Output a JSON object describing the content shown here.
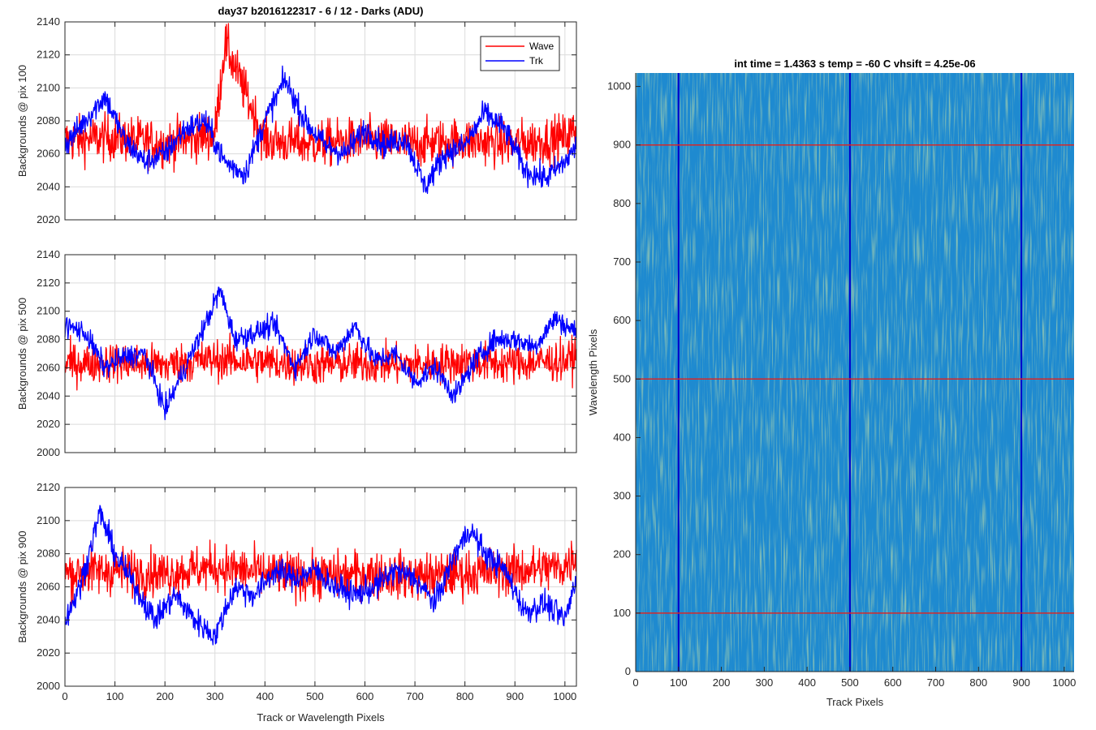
{
  "figure": {
    "title": "day37 b2016122317 - 6 / 12 - Darks (ADU)",
    "image_title": "int time = 1.4363 s    temp = -60 C    vhsift = 4.25e-06"
  },
  "legend": {
    "wave_label": "Wave",
    "trk_label": "Trk"
  },
  "colors": {
    "wave": "#ff0000",
    "trk": "#0000ff",
    "marker_h": "#d62728",
    "marker_v": "#0000cc",
    "heatmap_base": "#1e8ad0",
    "heatmap_hi": "#8fc060"
  },
  "chart_data": [
    {
      "type": "line",
      "ylabel": "Backgrounds @ pix 100",
      "xlim": [
        0,
        1023
      ],
      "ylim": [
        2020,
        2140
      ],
      "yticks": [
        2020,
        2040,
        2060,
        2080,
        2100,
        2120,
        2140
      ],
      "xticks": [
        0,
        100,
        200,
        300,
        400,
        500,
        600,
        700,
        800,
        900,
        1000
      ],
      "grid": true,
      "legend_position": "top-right",
      "series": [
        {
          "name": "Wave",
          "color": "#ff0000",
          "style": "noise",
          "mean": 2068,
          "amp": 18,
          "x": [
            0,
            100,
            200,
            300,
            320,
            400,
            500,
            600,
            700,
            800,
            900,
            1000,
            1023
          ],
          "y": [
            2068,
            2070,
            2066,
            2072,
            2127,
            2068,
            2066,
            2068,
            2066,
            2068,
            2066,
            2070,
            2075
          ]
        },
        {
          "name": "Trk",
          "color": "#0000ff",
          "style": "smooth",
          "x": [
            0,
            40,
            80,
            120,
            160,
            200,
            240,
            280,
            320,
            360,
            400,
            440,
            480,
            520,
            560,
            600,
            640,
            680,
            720,
            760,
            800,
            840,
            880,
            920,
            960,
            1000,
            1023
          ],
          "y": [
            2065,
            2080,
            2095,
            2068,
            2055,
            2060,
            2075,
            2080,
            2055,
            2048,
            2080,
            2105,
            2080,
            2065,
            2060,
            2075,
            2065,
            2070,
            2040,
            2060,
            2065,
            2085,
            2075,
            2050,
            2045,
            2055,
            2065
          ]
        }
      ]
    },
    {
      "type": "line",
      "ylabel": "Backgrounds @ pix 500",
      "xlim": [
        0,
        1023
      ],
      "ylim": [
        2000,
        2140
      ],
      "yticks": [
        2000,
        2020,
        2040,
        2060,
        2080,
        2100,
        2120,
        2140
      ],
      "xticks": [
        0,
        100,
        200,
        300,
        400,
        500,
        600,
        700,
        800,
        900,
        1000
      ],
      "grid": true,
      "series": [
        {
          "name": "Wave",
          "color": "#ff0000",
          "style": "noise",
          "mean": 2063,
          "amp": 18,
          "x": [
            0,
            100,
            200,
            300,
            400,
            500,
            600,
            700,
            800,
            900,
            1000,
            1023
          ],
          "y": [
            2063,
            2064,
            2062,
            2066,
            2064,
            2062,
            2063,
            2062,
            2064,
            2063,
            2065,
            2068
          ]
        },
        {
          "name": "Trk",
          "color": "#0000ff",
          "style": "smooth",
          "x": [
            0,
            40,
            80,
            120,
            160,
            200,
            240,
            280,
            310,
            340,
            380,
            420,
            460,
            500,
            540,
            580,
            620,
            660,
            700,
            740,
            780,
            820,
            860,
            900,
            940,
            980,
            1023
          ],
          "y": [
            2090,
            2085,
            2060,
            2068,
            2070,
            2030,
            2060,
            2090,
            2115,
            2080,
            2085,
            2090,
            2060,
            2085,
            2070,
            2090,
            2065,
            2070,
            2050,
            2060,
            2040,
            2065,
            2080,
            2080,
            2075,
            2095,
            2085
          ]
        }
      ]
    },
    {
      "type": "line",
      "ylabel": "Backgrounds @ pix 900",
      "xlabel": "Track or Wavelength Pixels",
      "xlim": [
        0,
        1023
      ],
      "ylim": [
        2000,
        2120
      ],
      "yticks": [
        2000,
        2020,
        2040,
        2060,
        2080,
        2100,
        2120
      ],
      "xticks": [
        0,
        100,
        200,
        300,
        400,
        500,
        600,
        700,
        800,
        900,
        1000
      ],
      "grid": true,
      "series": [
        {
          "name": "Wave",
          "color": "#ff0000",
          "style": "noise",
          "mean": 2068,
          "amp": 18,
          "x": [
            0,
            100,
            200,
            300,
            400,
            500,
            600,
            700,
            800,
            900,
            1000,
            1023
          ],
          "y": [
            2068,
            2070,
            2068,
            2072,
            2068,
            2066,
            2068,
            2066,
            2068,
            2070,
            2072,
            2080
          ]
        },
        {
          "name": "Trk",
          "color": "#0000ff",
          "style": "smooth",
          "x": [
            0,
            30,
            70,
            100,
            140,
            180,
            220,
            260,
            300,
            340,
            380,
            420,
            460,
            500,
            540,
            580,
            620,
            660,
            700,
            740,
            780,
            810,
            840,
            880,
            920,
            960,
            1000,
            1023
          ],
          "y": [
            2040,
            2060,
            2105,
            2080,
            2060,
            2040,
            2055,
            2040,
            2030,
            2060,
            2055,
            2070,
            2065,
            2070,
            2060,
            2055,
            2060,
            2070,
            2065,
            2050,
            2080,
            2095,
            2080,
            2070,
            2045,
            2050,
            2040,
            2065
          ]
        }
      ]
    },
    {
      "type": "heatmap",
      "xlabel": "Track Pixels",
      "ylabel": "Wavelength Pixels",
      "xlim": [
        0,
        1023
      ],
      "ylim": [
        0,
        1023
      ],
      "xticks": [
        0,
        100,
        200,
        300,
        400,
        500,
        600,
        700,
        800,
        900,
        1000
      ],
      "yticks": [
        0,
        100,
        200,
        300,
        400,
        500,
        600,
        700,
        800,
        900,
        1000
      ],
      "hlines": [
        100,
        500,
        900
      ],
      "vlines": [
        100,
        500,
        900
      ]
    }
  ]
}
